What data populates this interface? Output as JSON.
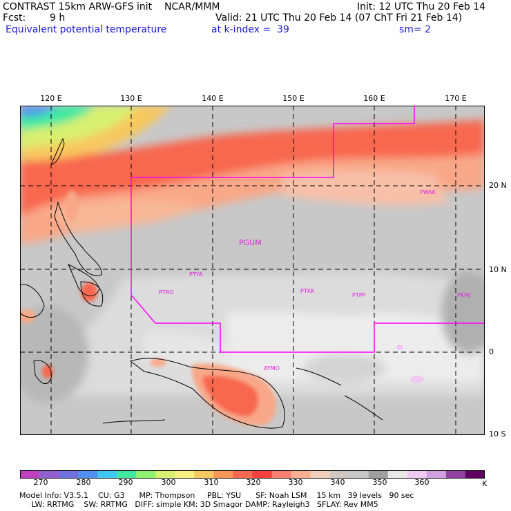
{
  "header": {
    "line1_left": "CONTRAST 15km ARW-GFS init    NCAR/MMM",
    "line1_right": "Init: 12 UTC Thu 20 Feb 14",
    "fcst_label": "Fcst:",
    "fcst_value": "9 h",
    "valid": "Valid: 21 UTC Thu 20 Feb 14 (07 ChT Fri 21 Feb 14)",
    "field_name": "Equivalent potential temperature",
    "level": "at k-index =  39",
    "smoothing": "sm= 2"
  },
  "map": {
    "lon_labels": [
      "120 E",
      "130 E",
      "140 E",
      "150 E",
      "160 E",
      "170 E"
    ],
    "lat_labels": [
      "20 N",
      "10 N",
      "0",
      "10 S"
    ],
    "stations": [
      "PGUM",
      "PTYA",
      "PTRO",
      "PTKK",
      "PTPP",
      "PKMJ",
      "PWAK",
      "AYMO"
    ],
    "colors": {
      "boundary": "#ff00ff",
      "station_text": "#e020e0",
      "grid": "#000000"
    }
  },
  "colorbar": {
    "labels": [
      "270",
      "280",
      "290",
      "300",
      "310",
      "320",
      "330",
      "340",
      "350",
      "360"
    ],
    "unit": "K",
    "colors": [
      "#c040c0",
      "#9060d0",
      "#7070e0",
      "#5090f0",
      "#40c8f0",
      "#40e8a0",
      "#90f070",
      "#d8f070",
      "#f8f080",
      "#f8c860",
      "#f89858",
      "#f86850",
      "#f84040",
      "#f88070",
      "#f8b090",
      "#f0d0b8",
      "#d0c8c0",
      "#c8c8c8",
      "#a0a0a0",
      "#e8e8e8",
      "#f0c8f0",
      "#d0a0e0",
      "#9040a0",
      "#600060"
    ]
  },
  "footer": {
    "line1": "Model Info: V3.5.1    CU: G3      MP: Thompson     PBL: YSU      SF: Noah LSM    15 km   39 levels   90 sec",
    "line2": "     LW: RRTMG    SW: RRTMG   DIFF: simple KM: 3D Smagor DAMP: Rayleigh3   SFLAY: Rev MM5"
  }
}
